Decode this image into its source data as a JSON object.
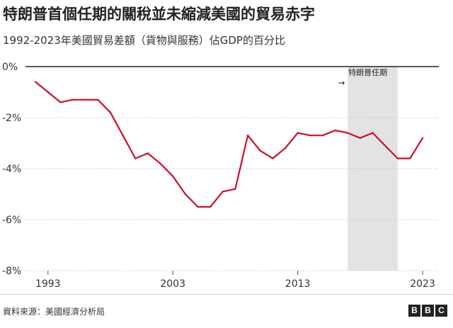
{
  "header": {
    "title": "特朗普首個任期的關稅並未縮減美國的貿易赤字",
    "subtitle": "1992-2023年美國貿易差額（貨物與服務）佔GDP的百分比"
  },
  "footer": {
    "source": "資料來源：美國經濟分析局",
    "logo_letters": [
      "B",
      "B",
      "C"
    ]
  },
  "colors": {
    "line": "#c8102e",
    "shade": "#e3e3e3",
    "grid": "#cfcfcf",
    "zero": "#222222"
  },
  "chart_data": {
    "type": "line",
    "title": "特朗普首個任期的關稅並未縮減美國的貿易赤字",
    "subtitle": "1992-2023年美國貿易差額（貨物與服務）佔GDP的百分比",
    "x": [
      1992,
      1993,
      1994,
      1995,
      1996,
      1997,
      1998,
      1999,
      2000,
      2001,
      2002,
      2003,
      2004,
      2005,
      2006,
      2007,
      2008,
      2009,
      2010,
      2011,
      2012,
      2013,
      2014,
      2015,
      2016,
      2017,
      2018,
      2019,
      2020,
      2021,
      2022,
      2023
    ],
    "series": [
      {
        "values": [
          -0.6,
          -1.0,
          -1.4,
          -1.3,
          -1.3,
          -1.3,
          -1.8,
          -2.7,
          -3.6,
          -3.4,
          -3.8,
          -4.3,
          -5.0,
          -5.5,
          -5.5,
          -4.9,
          -4.8,
          -2.7,
          -3.3,
          -3.6,
          -3.2,
          -2.6,
          -2.7,
          -2.7,
          -2.5,
          -2.6,
          -2.8,
          -2.6,
          -3.1,
          -3.6,
          -3.6,
          -2.8
        ]
      }
    ],
    "xticks": [
      "1993",
      "2003",
      "2013",
      "2023"
    ],
    "yticks": [
      "0%",
      "-2%",
      "-4%",
      "-6%",
      "-8%"
    ],
    "xlim": [
      1991.2,
      2024.3
    ],
    "ylim": [
      -8,
      0
    ],
    "grid": true,
    "shaded_period": {
      "start": 2017,
      "end": 2021,
      "label": "特朗普任期",
      "arrow": "→"
    }
  }
}
